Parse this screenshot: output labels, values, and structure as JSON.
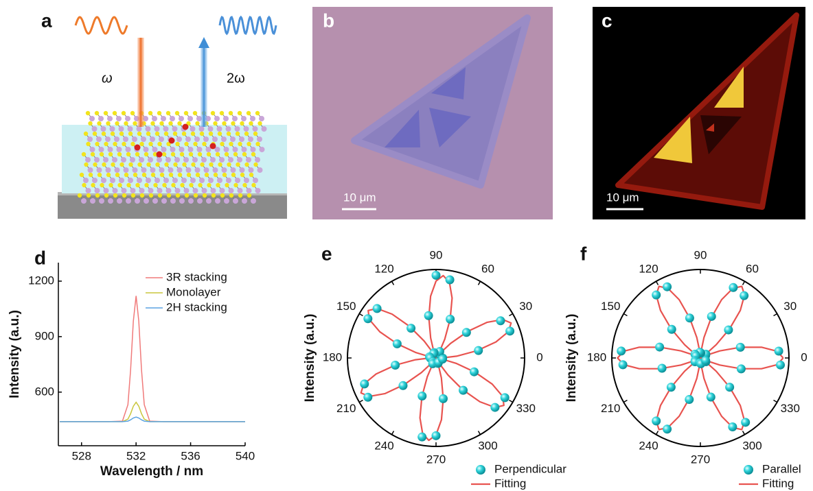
{
  "figure": {
    "panels": [
      {
        "label": "a",
        "texts": [
          "ω",
          "2ω"
        ]
      },
      {
        "label": "b",
        "scale_bar": "10 μm"
      },
      {
        "label": "c",
        "scale_bar": "10 μm"
      }
    ]
  },
  "chart_data": [
    {
      "type": "line",
      "panel": "d",
      "xlabel": "Wavelength / nm",
      "ylabel": "Intensity (a.u.)",
      "x": [
        526.4,
        530,
        531,
        531.4,
        531.6,
        531.8,
        532,
        532.2,
        532.4,
        532.6,
        533,
        534,
        540
      ],
      "xlim": [
        526.3,
        540
      ],
      "xticks": [
        528,
        532,
        536,
        540
      ],
      "ylim": [
        310,
        1300
      ],
      "yticks": [
        600,
        900,
        1200
      ],
      "legend": "upper right",
      "series": [
        {
          "name": "3R stacking",
          "color": "#f07a7a",
          "values": [
            440,
            440,
            443,
            532,
            720,
            985,
            1120,
            985,
            720,
            532,
            443,
            440,
            440
          ]
        },
        {
          "name": "Monolayer",
          "color": "#c9c63c",
          "values": [
            440,
            440,
            440,
            454,
            483,
            524,
            545,
            524,
            483,
            454,
            440,
            440,
            440
          ]
        },
        {
          "name": "2H stacking",
          "color": "#5aa2e2",
          "values": [
            440,
            440,
            440,
            443,
            450,
            460,
            465,
            460,
            450,
            443,
            440,
            440,
            440
          ]
        }
      ]
    },
    {
      "type": "polar",
      "panel": "e",
      "ylabel": "Intensity (a.u.)",
      "rlim": [
        0,
        1.07
      ],
      "xticks": [
        0,
        30,
        60,
        90,
        120,
        150,
        180,
        210,
        240,
        270,
        300,
        330
      ],
      "series": [
        {
          "name": "Perpendicular",
          "kind": "scatter",
          "color": "#2fd3da",
          "x": [
            0,
            10,
            20,
            30,
            40,
            50,
            60,
            70,
            80,
            90,
            100,
            110,
            120,
            130,
            140,
            150,
            160,
            170,
            180,
            190,
            200,
            210,
            220,
            230,
            240,
            250,
            260,
            270,
            280,
            290,
            300,
            310,
            320,
            330,
            340,
            350
          ],
          "values": [
            0.08,
            0.52,
            0.95,
            0.9,
            0.48,
            0.06,
            0.09,
            0.5,
            0.96,
            1.0,
            0.52,
            0.07,
            0.06,
            0.47,
            0.93,
            0.95,
            0.5,
            0.08,
            0.07,
            0.5,
            0.92,
            0.95,
            0.52,
            0.06,
            0.08,
            0.49,
            0.97,
            0.94,
            0.5,
            0.07,
            0.06,
            0.51,
            0.93,
            0.96,
            0.49,
            0.08
          ]
        },
        {
          "name": "Fitting",
          "kind": "line",
          "color": "#e8534f",
          "x": [
            0,
            5,
            10,
            15,
            20,
            25,
            30,
            35,
            40,
            45,
            50,
            55,
            60,
            65,
            70,
            75,
            80,
            85,
            90,
            95,
            100,
            105,
            110,
            115,
            120,
            125,
            130,
            135,
            140,
            145,
            150,
            155,
            160,
            165,
            170,
            175,
            180,
            185,
            190,
            195,
            200,
            205,
            210,
            215,
            220,
            225,
            230,
            235,
            240,
            245,
            250,
            255,
            260,
            265,
            270,
            275,
            280,
            285,
            290,
            295,
            300,
            305,
            310,
            315,
            320,
            325,
            330,
            335,
            340,
            345,
            350,
            355,
            360
          ],
          "values": [
            0.07,
            0.25,
            0.5,
            0.75,
            0.93,
            1,
            0.93,
            0.75,
            0.5,
            0.25,
            0.07,
            0,
            0.07,
            0.25,
            0.5,
            0.75,
            0.93,
            1,
            0.93,
            0.75,
            0.5,
            0.25,
            0.07,
            0,
            0.07,
            0.25,
            0.5,
            0.75,
            0.93,
            1,
            0.93,
            0.75,
            0.5,
            0.25,
            0.07,
            0,
            0.07,
            0.25,
            0.5,
            0.75,
            0.93,
            1,
            0.93,
            0.75,
            0.5,
            0.25,
            0.07,
            0,
            0.07,
            0.25,
            0.5,
            0.75,
            0.93,
            1,
            0.93,
            0.75,
            0.5,
            0.25,
            0.07,
            0,
            0.07,
            0.25,
            0.5,
            0.75,
            0.93,
            1,
            0.93,
            0.75,
            0.5,
            0.25,
            0.07,
            0,
            0.07
          ]
        }
      ]
    },
    {
      "type": "polar",
      "panel": "f",
      "ylabel": "Intensity (a.u.)",
      "rlim": [
        0,
        1.07
      ],
      "xticks": [
        0,
        30,
        60,
        90,
        120,
        150,
        180,
        210,
        240,
        270,
        300,
        330
      ],
      "series": [
        {
          "name": "Parallel",
          "kind": "scatter",
          "color": "#2fd3da",
          "x": [
            5,
            15,
            25,
            35,
            45,
            55,
            65,
            75,
            85,
            95,
            105,
            115,
            125,
            135,
            145,
            155,
            165,
            175,
            185,
            195,
            205,
            215,
            225,
            235,
            245,
            255,
            265,
            275,
            285,
            295,
            305,
            315,
            325,
            335,
            345,
            355
          ],
          "values": [
            0.95,
            0.5,
            0.07,
            0.08,
            0.48,
            0.92,
            0.94,
            0.52,
            0.06,
            0.07,
            0.5,
            0.95,
            0.93,
            0.49,
            0.08,
            0.06,
            0.51,
            0.96,
            0.94,
            0.48,
            0.07,
            0.08,
            0.5,
            0.93,
            0.95,
            0.52,
            0.06,
            0.07,
            0.49,
            0.92,
            0.95,
            0.5,
            0.08,
            0.07,
            0.51,
            0.97
          ]
        },
        {
          "name": "Fitting",
          "kind": "line",
          "color": "#e8534f",
          "x": [
            0,
            5,
            10,
            15,
            20,
            25,
            30,
            35,
            40,
            45,
            50,
            55,
            60,
            65,
            70,
            75,
            80,
            85,
            90,
            95,
            100,
            105,
            110,
            115,
            120,
            125,
            130,
            135,
            140,
            145,
            150,
            155,
            160,
            165,
            170,
            175,
            180,
            185,
            190,
            195,
            200,
            205,
            210,
            215,
            220,
            225,
            230,
            235,
            240,
            245,
            250,
            255,
            260,
            265,
            270,
            275,
            280,
            285,
            290,
            295,
            300,
            305,
            310,
            315,
            320,
            325,
            330,
            335,
            340,
            345,
            350,
            355,
            360
          ],
          "values": [
            1,
            0.93,
            0.75,
            0.5,
            0.25,
            0.07,
            0,
            0.07,
            0.25,
            0.5,
            0.75,
            0.93,
            1,
            0.93,
            0.75,
            0.5,
            0.25,
            0.07,
            0,
            0.07,
            0.25,
            0.5,
            0.75,
            0.93,
            1,
            0.93,
            0.75,
            0.5,
            0.25,
            0.07,
            0,
            0.07,
            0.25,
            0.5,
            0.75,
            0.93,
            1,
            0.93,
            0.75,
            0.5,
            0.25,
            0.07,
            0,
            0.07,
            0.25,
            0.5,
            0.75,
            0.93,
            1,
            0.93,
            0.75,
            0.5,
            0.25,
            0.07,
            0,
            0.07,
            0.25,
            0.5,
            0.75,
            0.93,
            1,
            0.93,
            0.75,
            0.5,
            0.25,
            0.07,
            0,
            0.07,
            0.25,
            0.5,
            0.75,
            0.93,
            1
          ]
        }
      ]
    }
  ]
}
